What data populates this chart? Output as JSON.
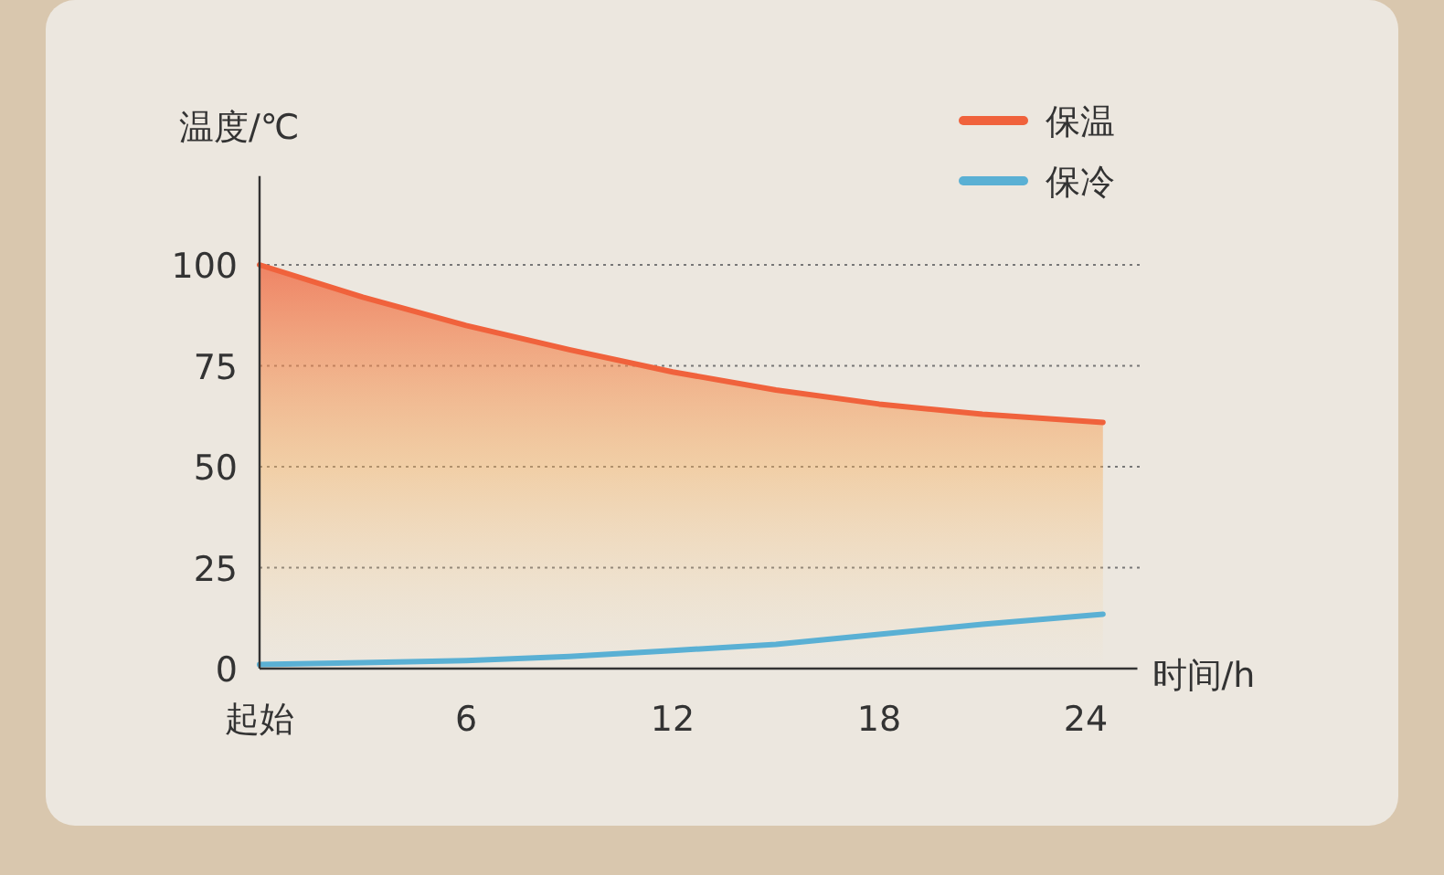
{
  "chart_data": {
    "type": "line",
    "ylabel": "温度/℃",
    "xlabel": "时间/h",
    "x": [
      0,
      3,
      6,
      9,
      12,
      15,
      18,
      21,
      24.5
    ],
    "series": [
      {
        "name": "保温",
        "color": "#f0623c",
        "type": "area",
        "values": [
          100,
          92,
          85,
          79,
          73.5,
          69,
          65.5,
          63,
          61
        ]
      },
      {
        "name": "保冷",
        "color": "#5ab0d4",
        "values": [
          1,
          1.5,
          2,
          3,
          4.5,
          6,
          8.5,
          11,
          13.5
        ]
      }
    ],
    "xlim": [
      0,
      25.5
    ],
    "ylim": [
      0,
      122
    ],
    "xticks": [
      {
        "value": 0,
        "label": "起始"
      },
      6,
      12,
      18,
      24
    ],
    "yticks": [
      0,
      25,
      50,
      75,
      100
    ],
    "grid": "y",
    "legend": "top right",
    "marker": "none",
    "line_style": "solid"
  }
}
